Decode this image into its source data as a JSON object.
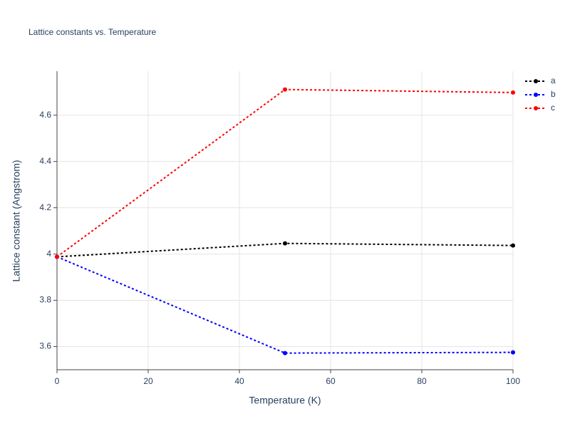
{
  "chart_data": {
    "type": "line",
    "title": "Lattice constants vs. Temperature",
    "x_label": "Temperature (K)",
    "y_label": "Lattice constant (Angstrom)",
    "x": [
      0,
      50,
      100
    ],
    "series": [
      {
        "name": "a",
        "color": "#000000",
        "values": [
          3.988,
          4.046,
          4.037
        ]
      },
      {
        "name": "b",
        "color": "#0000ff",
        "values": [
          3.988,
          3.572,
          3.575
        ]
      },
      {
        "name": "c",
        "color": "#ff0000",
        "values": [
          3.988,
          4.711,
          4.698
        ]
      }
    ],
    "xlim": [
      0,
      100
    ],
    "xticks": [
      0,
      20,
      40,
      60,
      80,
      100
    ],
    "ylim": [
      3.5,
      4.79
    ],
    "yticks": [
      3.6,
      3.8,
      4,
      4.2,
      4.4,
      4.6
    ],
    "grid": true,
    "legend": "right",
    "line_style": "dotted"
  }
}
